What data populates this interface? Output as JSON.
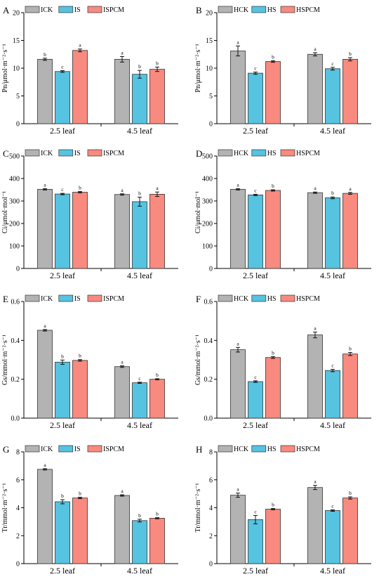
{
  "colors": {
    "control": "#b3b3b3",
    "stress": "#56c3e0",
    "pcm": "#f88a7f",
    "axis": "#000000"
  },
  "chart_data": [
    {
      "panel": "A",
      "type": "bar",
      "ylabel": "Pn/μmol·m⁻²·s⁻¹",
      "ylim": [
        0,
        20
      ],
      "yticks": [
        0,
        5,
        10,
        15,
        20
      ],
      "categories": [
        "2.5 leaf",
        "4.5 leaf"
      ],
      "series": [
        {
          "name": "ICK",
          "values": [
            11.6,
            11.6
          ],
          "errors": [
            0.2,
            0.5
          ],
          "letters": [
            "b",
            "a"
          ]
        },
        {
          "name": "IS",
          "values": [
            9.4,
            8.9
          ],
          "errors": [
            0.15,
            0.7
          ],
          "letters": [
            "c",
            "b"
          ]
        },
        {
          "name": "ISPCM",
          "values": [
            13.2,
            9.8
          ],
          "errors": [
            0.25,
            0.4
          ],
          "letters": [
            "a",
            "b"
          ]
        }
      ]
    },
    {
      "panel": "B",
      "type": "bar",
      "ylabel": "Pn/μmol·m⁻²·s⁻¹",
      "ylim": [
        0,
        20
      ],
      "yticks": [
        0,
        5,
        10,
        15,
        20
      ],
      "categories": [
        "2.5 leaf",
        "4.5 leaf"
      ],
      "series": [
        {
          "name": "HCK",
          "values": [
            13.1,
            12.5
          ],
          "errors": [
            0.9,
            0.3
          ],
          "letters": [
            "a",
            "a"
          ]
        },
        {
          "name": "HS",
          "values": [
            9.1,
            9.9
          ],
          "errors": [
            0.2,
            0.25
          ],
          "letters": [
            "c",
            "c"
          ]
        },
        {
          "name": "HSPCM",
          "values": [
            11.2,
            11.6
          ],
          "errors": [
            0.15,
            0.3
          ],
          "letters": [
            "b",
            "b"
          ]
        }
      ]
    },
    {
      "panel": "C",
      "type": "bar",
      "ylabel": "Ci/μmol·mol⁻¹",
      "ylim": [
        0,
        500
      ],
      "yticks": [
        0,
        100,
        200,
        300,
        400,
        500
      ],
      "categories": [
        "2.5 leaf",
        "4.5 leaf"
      ],
      "series": [
        {
          "name": "ICK",
          "values": [
            352,
            329
          ],
          "errors": [
            3,
            3
          ],
          "letters": [
            "a",
            "a"
          ]
        },
        {
          "name": "IS",
          "values": [
            331,
            297
          ],
          "errors": [
            3,
            20
          ],
          "letters": [
            "c",
            "b"
          ]
        },
        {
          "name": "ISPCM",
          "values": [
            339,
            330
          ],
          "errors": [
            3,
            10
          ],
          "letters": [
            "b",
            "a"
          ]
        }
      ]
    },
    {
      "panel": "D",
      "type": "bar",
      "ylabel": "Ci/μmol·mol⁻¹",
      "ylim": [
        0,
        500
      ],
      "yticks": [
        0,
        100,
        200,
        300,
        400,
        500
      ],
      "categories": [
        "2.5 leaf",
        "4.5 leaf"
      ],
      "series": [
        {
          "name": "HCK",
          "values": [
            352,
            337
          ],
          "errors": [
            3,
            3
          ],
          "letters": [
            "a",
            "a"
          ]
        },
        {
          "name": "HS",
          "values": [
            327,
            314
          ],
          "errors": [
            3,
            4
          ],
          "letters": [
            "c",
            "b"
          ]
        },
        {
          "name": "HSPCM",
          "values": [
            347,
            334
          ],
          "errors": [
            3,
            4
          ],
          "letters": [
            "b",
            "a"
          ]
        }
      ]
    },
    {
      "panel": "E",
      "type": "bar",
      "ylabel": "Gs/mmol·m⁻²·s⁻¹",
      "ylim": [
        0,
        0.6
      ],
      "yticks": [
        0.0,
        0.2,
        0.4,
        0.6
      ],
      "categories": [
        "2.5 leaf",
        "4.5 leaf"
      ],
      "series": [
        {
          "name": "ICK",
          "values": [
            0.452,
            0.265
          ],
          "errors": [
            0.004,
            0.004
          ],
          "letters": [
            "a",
            "a"
          ]
        },
        {
          "name": "IS",
          "values": [
            0.288,
            0.182
          ],
          "errors": [
            0.011,
            0.003
          ],
          "letters": [
            "b",
            "c"
          ]
        },
        {
          "name": "ISPCM",
          "values": [
            0.297,
            0.2
          ],
          "errors": [
            0.004,
            0.003
          ],
          "letters": [
            "b",
            "b"
          ]
        }
      ]
    },
    {
      "panel": "F",
      "type": "bar",
      "ylabel": "Gs/mmol·m⁻²·s⁻¹",
      "ylim": [
        0,
        0.6
      ],
      "yticks": [
        0.0,
        0.2,
        0.4,
        0.6
      ],
      "categories": [
        "2.5 leaf",
        "4.5 leaf"
      ],
      "series": [
        {
          "name": "HCK",
          "values": [
            0.352,
            0.428
          ],
          "errors": [
            0.012,
            0.015
          ],
          "letters": [
            "a",
            "a"
          ]
        },
        {
          "name": "HS",
          "values": [
            0.188,
            0.245
          ],
          "errors": [
            0.004,
            0.006
          ],
          "letters": [
            "c",
            "c"
          ]
        },
        {
          "name": "HSPCM",
          "values": [
            0.312,
            0.33
          ],
          "errors": [
            0.005,
            0.008
          ],
          "letters": [
            "b",
            "b"
          ]
        }
      ]
    },
    {
      "panel": "G",
      "type": "bar",
      "ylabel": "Tr/mmol·m⁻²·s⁻¹",
      "ylim": [
        0,
        8
      ],
      "yticks": [
        0,
        2,
        4,
        6,
        8
      ],
      "categories": [
        "2.5 leaf",
        "4.5 leaf"
      ],
      "series": [
        {
          "name": "ICK",
          "values": [
            6.75,
            4.88
          ],
          "errors": [
            0.05,
            0.05
          ],
          "letters": [
            "a",
            "a"
          ]
        },
        {
          "name": "IS",
          "values": [
            4.43,
            3.08
          ],
          "errors": [
            0.15,
            0.1
          ],
          "letters": [
            "b",
            "b"
          ]
        },
        {
          "name": "ISPCM",
          "values": [
            4.7,
            3.25
          ],
          "errors": [
            0.05,
            0.04
          ],
          "letters": [
            "b",
            "b"
          ]
        }
      ]
    },
    {
      "panel": "H",
      "type": "bar",
      "ylabel": "Tr/mmol·m⁻²·s⁻¹",
      "ylim": [
        0,
        8
      ],
      "yticks": [
        0,
        2,
        4,
        6,
        8
      ],
      "categories": [
        "2.5 leaf",
        "4.5 leaf"
      ],
      "series": [
        {
          "name": "HCK",
          "values": [
            4.9,
            5.45
          ],
          "errors": [
            0.15,
            0.15
          ],
          "letters": [
            "a",
            "a"
          ]
        },
        {
          "name": "HS",
          "values": [
            3.15,
            3.8
          ],
          "errors": [
            0.3,
            0.05
          ],
          "letters": [
            "c",
            "c"
          ]
        },
        {
          "name": "HSPCM",
          "values": [
            3.9,
            4.7
          ],
          "errors": [
            0.05,
            0.08
          ],
          "letters": [
            "b",
            "b"
          ]
        }
      ]
    }
  ]
}
